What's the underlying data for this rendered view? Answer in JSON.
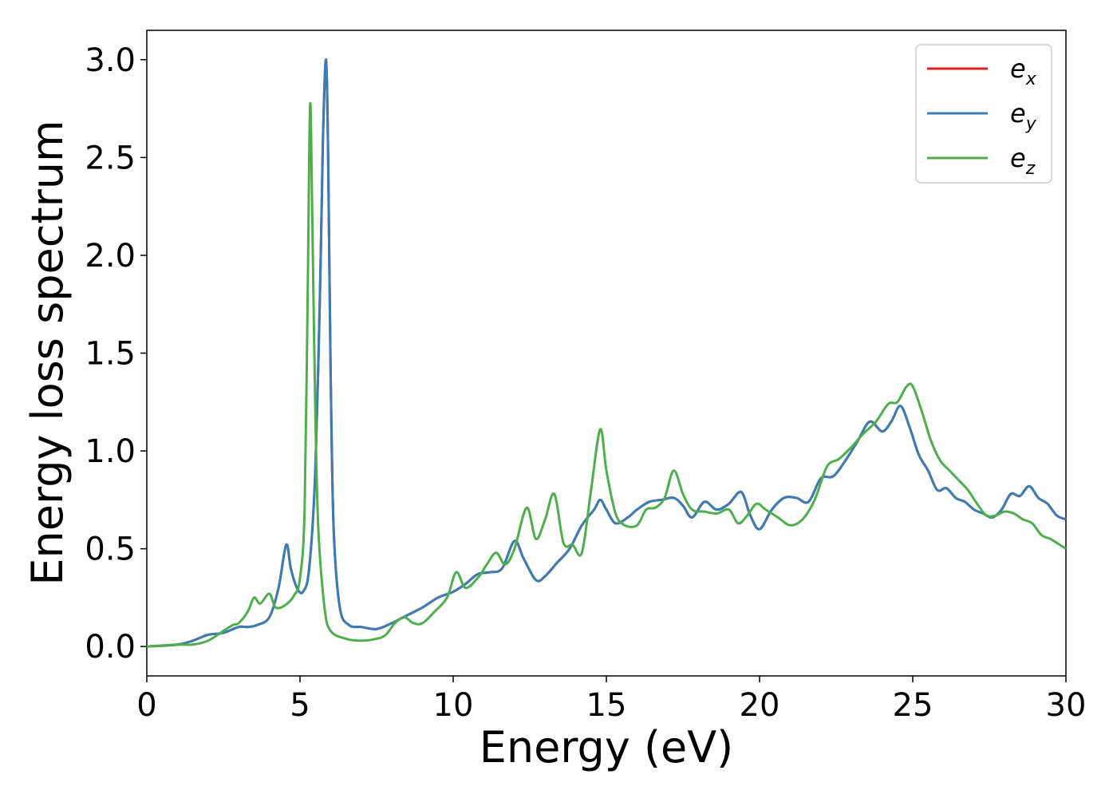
{
  "chart_data": {
    "type": "line",
    "title": "",
    "xlabel": "Energy (eV)",
    "ylabel": "Energy loss spectrum",
    "xlim": [
      0,
      30
    ],
    "ylim": [
      -0.15,
      3.15
    ],
    "xticks": [
      0,
      5,
      10,
      15,
      20,
      25,
      30
    ],
    "xtick_labels": [
      "0",
      "5",
      "10",
      "15",
      "20",
      "25",
      "30"
    ],
    "yticks": [
      0.0,
      0.5,
      1.0,
      1.5,
      2.0,
      2.5,
      3.0
    ],
    "ytick_labels": [
      "0.0",
      "0.5",
      "1.0",
      "1.5",
      "2.0",
      "2.5",
      "3.0"
    ],
    "grid": false,
    "legend_position": "top-right",
    "series": [
      {
        "name": "e",
        "subscript": "x",
        "color": "#e41a1c",
        "x": [
          0,
          1,
          1.5,
          2,
          2.5,
          3,
          3.3,
          3.6,
          4,
          4.3,
          4.55,
          4.7,
          4.9,
          5.1,
          5.3,
          5.5,
          5.65,
          5.75,
          5.85,
          5.92,
          6.0,
          6.1,
          6.3,
          6.6,
          7.0,
          7.5,
          8.0,
          8.5,
          9.0,
          9.5,
          10.0,
          10.4,
          10.8,
          11.2,
          11.6,
          12.0,
          12.3,
          12.7,
          13.0,
          13.4,
          13.8,
          14.2,
          14.6,
          14.8,
          15.0,
          15.3,
          15.7,
          16.0,
          16.4,
          16.8,
          17.2,
          17.5,
          17.8,
          18.2,
          18.6,
          19.0,
          19.4,
          19.7,
          20.0,
          20.4,
          20.8,
          21.2,
          21.6,
          22.0,
          22.4,
          22.8,
          23.2,
          23.6,
          24.0,
          24.3,
          24.6,
          24.9,
          25.2,
          25.5,
          25.8,
          26.1,
          26.4,
          26.7,
          27.0,
          27.3,
          27.6,
          27.9,
          28.2,
          28.5,
          28.8,
          29.1,
          29.4,
          29.7,
          30.0
        ],
        "values": [
          0.0,
          0.01,
          0.03,
          0.06,
          0.07,
          0.1,
          0.1,
          0.11,
          0.15,
          0.3,
          0.52,
          0.4,
          0.3,
          0.28,
          0.4,
          0.9,
          1.8,
          2.6,
          3.0,
          2.5,
          1.4,
          0.6,
          0.2,
          0.11,
          0.1,
          0.09,
          0.12,
          0.16,
          0.2,
          0.25,
          0.28,
          0.32,
          0.37,
          0.38,
          0.4,
          0.54,
          0.45,
          0.34,
          0.36,
          0.43,
          0.5,
          0.62,
          0.7,
          0.75,
          0.7,
          0.63,
          0.66,
          0.7,
          0.74,
          0.75,
          0.76,
          0.72,
          0.66,
          0.74,
          0.7,
          0.73,
          0.79,
          0.67,
          0.6,
          0.7,
          0.76,
          0.76,
          0.74,
          0.86,
          0.87,
          0.95,
          1.05,
          1.15,
          1.1,
          1.15,
          1.23,
          1.12,
          0.98,
          0.9,
          0.8,
          0.81,
          0.76,
          0.74,
          0.7,
          0.68,
          0.66,
          0.7,
          0.78,
          0.77,
          0.82,
          0.76,
          0.73,
          0.67,
          0.65
        ]
      },
      {
        "name": "e",
        "subscript": "y",
        "color": "#377eb8",
        "x": [
          0,
          1,
          1.5,
          2,
          2.5,
          3,
          3.3,
          3.6,
          4,
          4.3,
          4.55,
          4.7,
          4.9,
          5.1,
          5.3,
          5.5,
          5.65,
          5.75,
          5.85,
          5.92,
          6.0,
          6.1,
          6.3,
          6.6,
          7.0,
          7.5,
          8.0,
          8.5,
          9.0,
          9.5,
          10.0,
          10.4,
          10.8,
          11.2,
          11.6,
          12.0,
          12.3,
          12.7,
          13.0,
          13.4,
          13.8,
          14.2,
          14.6,
          14.8,
          15.0,
          15.3,
          15.7,
          16.0,
          16.4,
          16.8,
          17.2,
          17.5,
          17.8,
          18.2,
          18.6,
          19.0,
          19.4,
          19.7,
          20.0,
          20.4,
          20.8,
          21.2,
          21.6,
          22.0,
          22.4,
          22.8,
          23.2,
          23.6,
          24.0,
          24.3,
          24.6,
          24.9,
          25.2,
          25.5,
          25.8,
          26.1,
          26.4,
          26.7,
          27.0,
          27.3,
          27.6,
          27.9,
          28.2,
          28.5,
          28.8,
          29.1,
          29.4,
          29.7,
          30.0
        ],
        "values": [
          0.0,
          0.01,
          0.03,
          0.06,
          0.07,
          0.1,
          0.1,
          0.11,
          0.15,
          0.3,
          0.52,
          0.4,
          0.3,
          0.28,
          0.4,
          0.9,
          1.8,
          2.6,
          3.0,
          2.5,
          1.4,
          0.6,
          0.2,
          0.11,
          0.1,
          0.09,
          0.12,
          0.16,
          0.2,
          0.25,
          0.28,
          0.32,
          0.37,
          0.38,
          0.4,
          0.54,
          0.45,
          0.34,
          0.36,
          0.43,
          0.5,
          0.62,
          0.7,
          0.75,
          0.7,
          0.63,
          0.66,
          0.7,
          0.74,
          0.75,
          0.76,
          0.72,
          0.66,
          0.74,
          0.7,
          0.73,
          0.79,
          0.67,
          0.6,
          0.7,
          0.76,
          0.76,
          0.74,
          0.86,
          0.87,
          0.95,
          1.05,
          1.15,
          1.1,
          1.15,
          1.23,
          1.12,
          0.98,
          0.9,
          0.8,
          0.81,
          0.76,
          0.74,
          0.7,
          0.68,
          0.66,
          0.7,
          0.78,
          0.77,
          0.82,
          0.76,
          0.73,
          0.67,
          0.65
        ]
      },
      {
        "name": "e",
        "subscript": "z",
        "color": "#4daf4a",
        "x": [
          0,
          1,
          1.5,
          2,
          2.5,
          2.8,
          3.0,
          3.3,
          3.5,
          3.7,
          4.0,
          4.2,
          4.5,
          4.8,
          5.0,
          5.15,
          5.25,
          5.33,
          5.4,
          5.5,
          5.6,
          5.8,
          6.0,
          6.5,
          7.0,
          7.5,
          7.8,
          8.1,
          8.4,
          8.7,
          9.0,
          9.4,
          9.8,
          10.1,
          10.4,
          10.8,
          11.1,
          11.4,
          11.7,
          12.0,
          12.4,
          12.7,
          13.0,
          13.3,
          13.6,
          13.9,
          14.2,
          14.5,
          14.8,
          15.0,
          15.3,
          15.6,
          16.0,
          16.3,
          16.6,
          16.9,
          17.2,
          17.5,
          17.8,
          18.2,
          18.6,
          19.0,
          19.3,
          19.6,
          19.9,
          20.2,
          20.6,
          21.0,
          21.4,
          21.8,
          22.2,
          22.6,
          23.0,
          23.4,
          23.8,
          24.2,
          24.5,
          24.8,
          25.0,
          25.3,
          25.6,
          25.9,
          26.2,
          26.5,
          26.8,
          27.1,
          27.4,
          27.7,
          28.0,
          28.3,
          28.6,
          28.9,
          29.2,
          29.5,
          29.8,
          30.0
        ],
        "values": [
          0.0,
          0.01,
          0.01,
          0.03,
          0.08,
          0.11,
          0.12,
          0.18,
          0.25,
          0.22,
          0.27,
          0.2,
          0.21,
          0.26,
          0.35,
          0.7,
          1.8,
          2.77,
          2.2,
          1.2,
          0.6,
          0.2,
          0.08,
          0.04,
          0.03,
          0.04,
          0.06,
          0.12,
          0.15,
          0.12,
          0.12,
          0.18,
          0.25,
          0.38,
          0.3,
          0.35,
          0.42,
          0.48,
          0.42,
          0.5,
          0.71,
          0.55,
          0.65,
          0.78,
          0.53,
          0.52,
          0.48,
          0.8,
          1.11,
          0.9,
          0.68,
          0.62,
          0.62,
          0.7,
          0.71,
          0.76,
          0.9,
          0.78,
          0.7,
          0.69,
          0.68,
          0.7,
          0.63,
          0.67,
          0.73,
          0.7,
          0.66,
          0.62,
          0.65,
          0.75,
          0.92,
          0.96,
          1.02,
          1.09,
          1.15,
          1.24,
          1.25,
          1.33,
          1.33,
          1.2,
          1.05,
          0.95,
          0.9,
          0.85,
          0.8,
          0.73,
          0.67,
          0.67,
          0.69,
          0.68,
          0.65,
          0.63,
          0.57,
          0.55,
          0.52,
          0.5
        ]
      }
    ]
  }
}
